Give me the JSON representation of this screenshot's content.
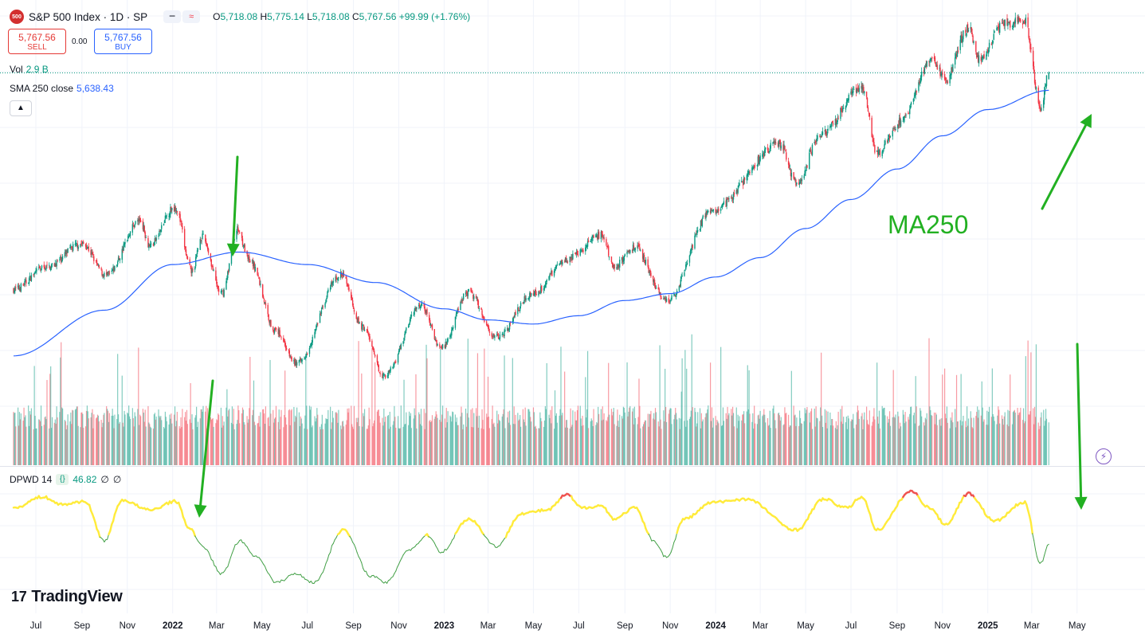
{
  "header": {
    "symbol_badge": "500",
    "title": "S&P 500 Index · 1D · SP",
    "ohlc": {
      "o_label": "O",
      "o": "5,718.08",
      "h_label": "H",
      "h": "5,775.14",
      "l_label": "L",
      "l": "5,718.08",
      "c_label": "C",
      "c": "5,767.56",
      "change": "+99.99 (+1.76%)"
    }
  },
  "trade": {
    "sell_price": "5,767.56",
    "sell_label": "SELL",
    "spread": "0.00",
    "buy_price": "5,767.56",
    "buy_label": "BUY"
  },
  "volume_legend": {
    "label": "Vol",
    "value": "2.9 B"
  },
  "sma_legend": {
    "label": "SMA 250 close",
    "value": "5,638.43"
  },
  "indicator_legend": {
    "label": "DPWD 14",
    "brace": "{}",
    "value": "46.82",
    "extra1": "∅",
    "extra2": "∅"
  },
  "annotation": {
    "ma_label": "MA250"
  },
  "brand": {
    "logo_mark": "17",
    "name": "TradingView"
  },
  "colors": {
    "up": "#089981",
    "down": "#f23645",
    "sma": "#2962ff",
    "annotation": "#22b022",
    "osc_high": "#ffeb3b",
    "osc_peak": "#ef5350",
    "osc_low": "#43a047"
  },
  "chart_data": {
    "type": "candlestick",
    "title": "S&P 500 Index · 1D · SP",
    "x_tick_labels": [
      "Jul",
      "Sep",
      "Nov",
      "2022",
      "Mar",
      "May",
      "Jul",
      "Sep",
      "Nov",
      "2023",
      "Mar",
      "May",
      "Jul",
      "Sep",
      "Nov",
      "2024",
      "Mar",
      "May",
      "Jul",
      "Sep",
      "Nov",
      "2025",
      "Mar",
      "May"
    ],
    "x_tick_dates": [
      "2021-07",
      "2021-09",
      "2021-11",
      "2022-01",
      "2022-03",
      "2022-05",
      "2022-07",
      "2022-09",
      "2022-11",
      "2023-01",
      "2023-03",
      "2023-05",
      "2023-07",
      "2023-09",
      "2023-11",
      "2024-01",
      "2024-03",
      "2024-05",
      "2024-07",
      "2024-09",
      "2024-11",
      "2025-01",
      "2025-03",
      "2025-05"
    ],
    "price_ylim": [
      3400,
      6250
    ],
    "price_anchors": [
      {
        "date": "2021-06-01",
        "close": 4200
      },
      {
        "date": "2021-07-15",
        "close": 4360
      },
      {
        "date": "2021-09-01",
        "close": 4530
      },
      {
        "date": "2021-10-04",
        "close": 4300
      },
      {
        "date": "2021-11-18",
        "close": 4700
      },
      {
        "date": "2021-12-01",
        "close": 4520
      },
      {
        "date": "2022-01-04",
        "close": 4795
      },
      {
        "date": "2022-01-27",
        "close": 4330
      },
      {
        "date": "2022-02-09",
        "close": 4580
      },
      {
        "date": "2022-03-08",
        "close": 4170
      },
      {
        "date": "2022-03-29",
        "close": 4630
      },
      {
        "date": "2022-04-15",
        "close": 4400
      },
      {
        "date": "2022-05-20",
        "close": 3900
      },
      {
        "date": "2022-06-16",
        "close": 3666
      },
      {
        "date": "2022-08-16",
        "close": 4305
      },
      {
        "date": "2022-09-13",
        "close": 3930
      },
      {
        "date": "2022-10-12",
        "close": 3577
      },
      {
        "date": "2022-12-01",
        "close": 4080
      },
      {
        "date": "2022-12-28",
        "close": 3780
      },
      {
        "date": "2023-02-02",
        "close": 4180
      },
      {
        "date": "2023-03-13",
        "close": 3855
      },
      {
        "date": "2023-04-30",
        "close": 4170
      },
      {
        "date": "2023-06-15",
        "close": 4420
      },
      {
        "date": "2023-07-31",
        "close": 4590
      },
      {
        "date": "2023-08-18",
        "close": 4370
      },
      {
        "date": "2023-09-14",
        "close": 4505
      },
      {
        "date": "2023-10-27",
        "close": 4117
      },
      {
        "date": "2023-12-28",
        "close": 4780
      },
      {
        "date": "2024-03-28",
        "close": 5250
      },
      {
        "date": "2024-04-19",
        "close": 4967
      },
      {
        "date": "2024-05-21",
        "close": 5320
      },
      {
        "date": "2024-07-16",
        "close": 5667
      },
      {
        "date": "2024-08-05",
        "close": 5186
      },
      {
        "date": "2024-09-06",
        "close": 5408
      },
      {
        "date": "2024-10-18",
        "close": 5864
      },
      {
        "date": "2024-11-04",
        "close": 5712
      },
      {
        "date": "2024-12-06",
        "close": 6090
      },
      {
        "date": "2024-12-19",
        "close": 5867
      },
      {
        "date": "2025-01-23",
        "close": 6119
      },
      {
        "date": "2025-02-19",
        "close": 6144
      },
      {
        "date": "2025-03-13",
        "close": 5521
      },
      {
        "date": "2025-03-24",
        "close": 5767
      }
    ],
    "sma250_anchors": [
      {
        "date": "2021-06-01",
        "value": 3720
      },
      {
        "date": "2021-10-01",
        "value": 4050
      },
      {
        "date": "2022-01-01",
        "value": 4380
      },
      {
        "date": "2022-04-01",
        "value": 4470
      },
      {
        "date": "2022-07-01",
        "value": 4380
      },
      {
        "date": "2022-10-01",
        "value": 4250
      },
      {
        "date": "2023-01-01",
        "value": 4060
      },
      {
        "date": "2023-03-01",
        "value": 3980
      },
      {
        "date": "2023-05-01",
        "value": 3950
      },
      {
        "date": "2023-07-01",
        "value": 4010
      },
      {
        "date": "2023-09-01",
        "value": 4120
      },
      {
        "date": "2023-11-01",
        "value": 4170
      },
      {
        "date": "2024-01-01",
        "value": 4290
      },
      {
        "date": "2024-03-01",
        "value": 4430
      },
      {
        "date": "2024-05-01",
        "value": 4640
      },
      {
        "date": "2024-07-01",
        "value": 4850
      },
      {
        "date": "2024-09-01",
        "value": 5070
      },
      {
        "date": "2024-11-01",
        "value": 5310
      },
      {
        "date": "2025-01-01",
        "value": 5500
      },
      {
        "date": "2025-03-24",
        "value": 5638.43
      }
    ],
    "last": {
      "open": 5718.08,
      "high": 5775.14,
      "low": 5718.08,
      "close": 5767.56,
      "change": 99.99,
      "change_pct": 1.76
    },
    "volume_last_billion": 2.9,
    "sma_period": 250,
    "oscillator": {
      "name": "DPWD 14",
      "value": 46.82,
      "ylim": [
        0,
        100
      ],
      "anchors": [
        {
          "date": "2021-06-01",
          "value": 80
        },
        {
          "date": "2021-07-10",
          "value": 90
        },
        {
          "date": "2021-08-05",
          "value": 83
        },
        {
          "date": "2021-09-05",
          "value": 86
        },
        {
          "date": "2021-10-01",
          "value": 50
        },
        {
          "date": "2021-10-25",
          "value": 87
        },
        {
          "date": "2021-12-01",
          "value": 78
        },
        {
          "date": "2022-01-05",
          "value": 86
        },
        {
          "date": "2022-01-25",
          "value": 60
        },
        {
          "date": "2022-02-10",
          "value": 45
        },
        {
          "date": "2022-03-08",
          "value": 20
        },
        {
          "date": "2022-04-01",
          "value": 50
        },
        {
          "date": "2022-04-25",
          "value": 35
        },
        {
          "date": "2022-05-20",
          "value": 12
        },
        {
          "date": "2022-06-16",
          "value": 20
        },
        {
          "date": "2022-07-10",
          "value": 12
        },
        {
          "date": "2022-08-18",
          "value": 60
        },
        {
          "date": "2022-09-25",
          "value": 18
        },
        {
          "date": "2022-10-15",
          "value": 12
        },
        {
          "date": "2022-11-15",
          "value": 42
        },
        {
          "date": "2022-12-10",
          "value": 55
        },
        {
          "date": "2022-12-28",
          "value": 40
        },
        {
          "date": "2023-02-03",
          "value": 70
        },
        {
          "date": "2023-03-13",
          "value": 45
        },
        {
          "date": "2023-04-15",
          "value": 75
        },
        {
          "date": "2023-05-20",
          "value": 78
        },
        {
          "date": "2023-06-15",
          "value": 92
        },
        {
          "date": "2023-07-05",
          "value": 80
        },
        {
          "date": "2023-07-31",
          "value": 82
        },
        {
          "date": "2023-08-18",
          "value": 70
        },
        {
          "date": "2023-09-14",
          "value": 80
        },
        {
          "date": "2023-10-10",
          "value": 50
        },
        {
          "date": "2023-10-27",
          "value": 35
        },
        {
          "date": "2023-11-20",
          "value": 70
        },
        {
          "date": "2023-12-28",
          "value": 85
        },
        {
          "date": "2024-02-10",
          "value": 88
        },
        {
          "date": "2024-04-19",
          "value": 60
        },
        {
          "date": "2024-05-25",
          "value": 88
        },
        {
          "date": "2024-06-25",
          "value": 80
        },
        {
          "date": "2024-07-16",
          "value": 90
        },
        {
          "date": "2024-08-05",
          "value": 60
        },
        {
          "date": "2024-09-20",
          "value": 95
        },
        {
          "date": "2024-10-15",
          "value": 80
        },
        {
          "date": "2024-11-05",
          "value": 65
        },
        {
          "date": "2024-12-06",
          "value": 93
        },
        {
          "date": "2025-01-10",
          "value": 68
        },
        {
          "date": "2025-02-19",
          "value": 85
        },
        {
          "date": "2025-03-13",
          "value": 30
        },
        {
          "date": "2025-03-24",
          "value": 46.82
        }
      ]
    },
    "annotations": [
      {
        "type": "arrow",
        "text": "",
        "points_to": "SMA 250 line",
        "date": "2022-03-29"
      },
      {
        "type": "arrow",
        "text": "",
        "points_to": "oscillator",
        "date": "2022-02-10"
      },
      {
        "type": "arrow",
        "text": "MA250",
        "points_to": "SMA 250 line",
        "date": "2025-03-24"
      },
      {
        "type": "arrow",
        "text": "",
        "points_to": "oscillator",
        "date": "2025-03-13"
      }
    ]
  }
}
